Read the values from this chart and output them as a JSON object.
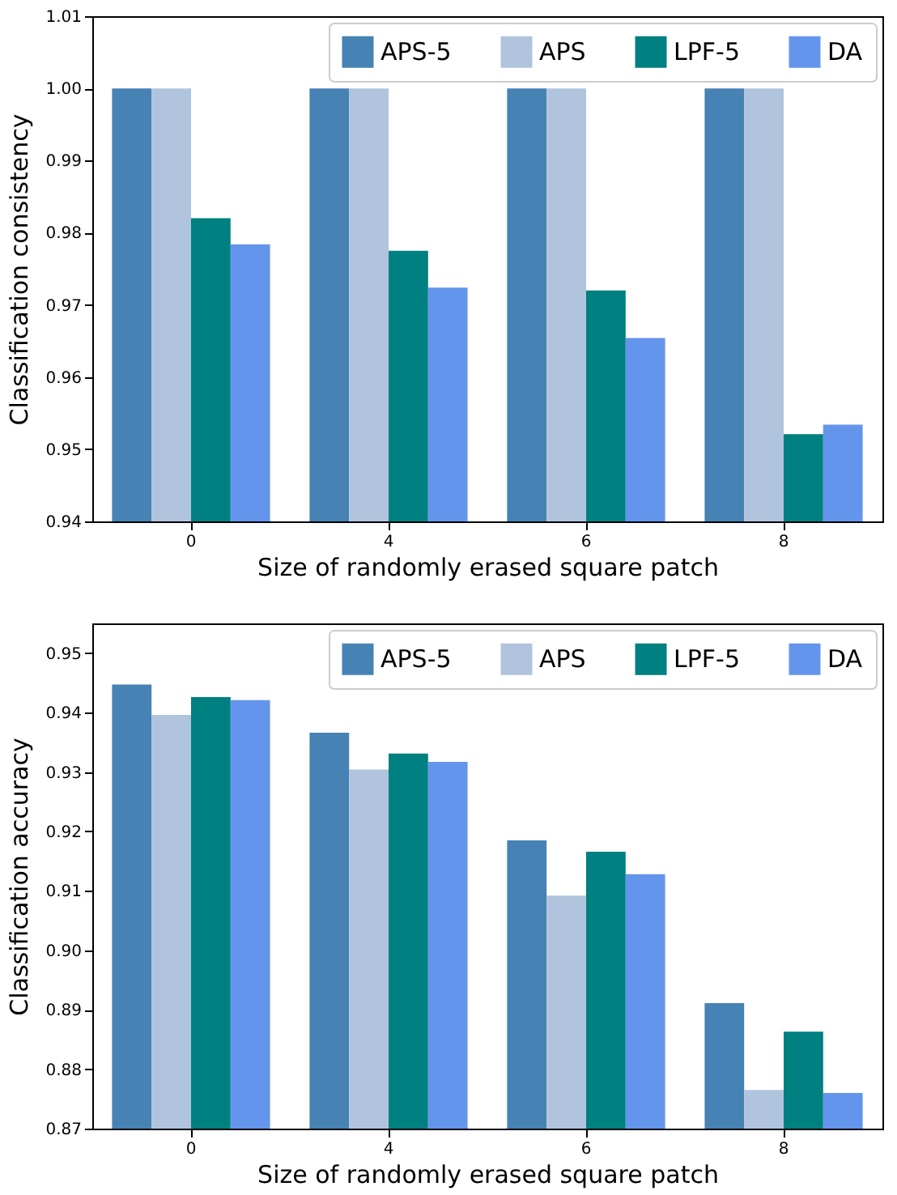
{
  "chart_data": [
    {
      "type": "bar",
      "xlabel": "Size of randomly erased square patch",
      "ylabel": "Classification consistency",
      "categories": [
        "0",
        "4",
        "6",
        "8"
      ],
      "series": [
        {
          "name": "APS-5",
          "color": "#4682b4",
          "values": [
            1.0,
            1.0,
            1.0,
            1.0
          ]
        },
        {
          "name": "APS",
          "color": "#b0c4de",
          "values": [
            1.0,
            1.0,
            1.0,
            1.0
          ]
        },
        {
          "name": "LPF-5",
          "color": "#008080",
          "values": [
            0.982,
            0.9775,
            0.972,
            0.9521
          ]
        },
        {
          "name": "DA",
          "color": "#6495ed",
          "values": [
            0.9784,
            0.9724,
            0.9654,
            0.9534
          ]
        }
      ],
      "ylim": [
        0.94,
        1.01
      ],
      "yticks": [
        0.94,
        0.95,
        0.96,
        0.97,
        0.98,
        0.99,
        {
          "value": 1.0,
          "label": "1.00"
        },
        1.01
      ],
      "legend": "top right"
    },
    {
      "type": "bar",
      "xlabel": "Size of randomly erased square patch",
      "ylabel": "Classification accuracy",
      "categories": [
        "0",
        "4",
        "6",
        "8"
      ],
      "series": [
        {
          "name": "APS-5",
          "color": "#4682b4",
          "values": [
            0.9447,
            0.9366,
            0.9185,
            0.8911
          ]
        },
        {
          "name": "APS",
          "color": "#b0c4de",
          "values": [
            0.9396,
            0.9304,
            0.9092,
            0.8765
          ]
        },
        {
          "name": "LPF-5",
          "color": "#008080",
          "values": [
            0.9426,
            0.9331,
            0.9166,
            0.8863
          ]
        },
        {
          "name": "DA",
          "color": "#6495ed",
          "values": [
            0.9421,
            0.9317,
            0.9128,
            0.876
          ]
        }
      ],
      "ylim": [
        0.87,
        0.955
      ],
      "yticks": [
        0.87,
        0.88,
        0.89,
        {
          "value": 0.9,
          "label": "0.90"
        },
        0.91,
        0.92,
        0.93,
        0.94,
        0.95
      ],
      "legend": "top right"
    }
  ]
}
